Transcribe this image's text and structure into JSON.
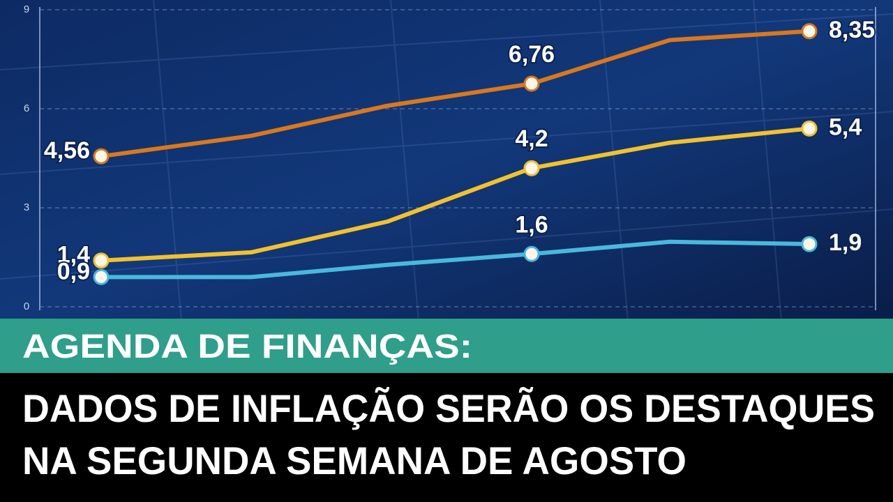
{
  "chart_data": {
    "type": "line",
    "categories": [
      null,
      null,
      null,
      null,
      null,
      null
    ],
    "series": [
      {
        "color": "#d9781e",
        "values": [
          4.56,
          5.18,
          6.09,
          6.76,
          8.08,
          8.35
        ],
        "value_labels": [
          "4,56",
          null,
          null,
          "6,76",
          null,
          "8,35"
        ]
      },
      {
        "color": "#f2c12e",
        "values": [
          1.4,
          1.65,
          2.58,
          4.2,
          4.97,
          5.4
        ],
        "value_labels": [
          "1,4",
          null,
          null,
          "4,2",
          null,
          "5,4"
        ]
      },
      {
        "color": "#4ab8dc",
        "values": [
          0.9,
          0.9,
          1.27,
          1.6,
          1.97,
          1.9
        ],
        "value_labels": [
          "0,9",
          null,
          null,
          "1,6",
          null,
          "1,9"
        ]
      }
    ],
    "ylim": [
      0,
      9
    ],
    "yticks": [
      0,
      3,
      6,
      9
    ],
    "grid": true
  },
  "banner": {
    "kicker": "AGENDA DE FINANÇAS:",
    "headline": [
      "DADOS DE INFLAÇÃO SERÃO OS DESTAQUES",
      "NA SEGUNDA SEMANA DE AGOSTO"
    ]
  }
}
